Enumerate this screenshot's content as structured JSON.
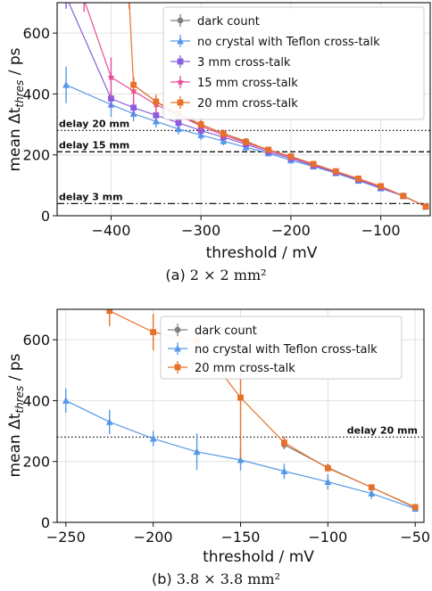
{
  "chart_data": [
    {
      "type": "line",
      "caption_prefix": "(a)",
      "caption_math": "2 × 2 mm²",
      "xlabel": "threshold / mV",
      "ylabel_main": "mean Δt",
      "ylabel_sub": "thres",
      "ylabel_unit": " / ps",
      "xlim": [
        -460,
        -45
      ],
      "ylim": [
        0,
        700
      ],
      "xticks": [
        -400,
        -300,
        -200,
        -100
      ],
      "xtick_labels": [
        "−400",
        "−300",
        "−200",
        "−100"
      ],
      "yticks": [
        0,
        200,
        400,
        600
      ],
      "ytick_labels": [
        "0",
        "200",
        "400",
        "600"
      ],
      "grid": true,
      "legend_position": "top-right",
      "hlines": [
        {
          "label": "delay 20 mm",
          "y": 280,
          "style": "dotted"
        },
        {
          "label": "delay 15 mm",
          "y": 210,
          "style": "dashed"
        },
        {
          "label": "delay 3 mm",
          "y": 40,
          "style": "dashdot"
        }
      ],
      "series": [
        {
          "name": "dark count",
          "color": "#808080",
          "marker": "circle",
          "x": [
            -375,
            -350,
            -325,
            -300,
            -275,
            -250,
            -225,
            -200,
            -175,
            -150,
            -125,
            -100,
            -75,
            -50
          ],
          "y": [
            430,
            375,
            330,
            300,
            270,
            245,
            215,
            195,
            170,
            145,
            120,
            95,
            65,
            30
          ],
          "err": [
            25,
            22,
            18,
            14,
            12,
            10,
            9,
            8,
            7,
            6,
            6,
            5,
            5,
            5
          ]
        },
        {
          "name": "no crystal with Teflon cross-talk",
          "color": "#5599e6",
          "marker": "triangle",
          "x": [
            -450,
            -400,
            -375,
            -350,
            -325,
            -300,
            -275,
            -250,
            -225,
            -200,
            -175,
            -150,
            -125,
            -100,
            -75,
            -50
          ],
          "y": [
            430,
            365,
            335,
            310,
            285,
            265,
            245,
            225,
            205,
            182,
            162,
            140,
            115,
            90,
            65,
            30
          ],
          "err": [
            60,
            40,
            25,
            20,
            18,
            16,
            14,
            12,
            10,
            9,
            8,
            7,
            7,
            6,
            6,
            5
          ]
        },
        {
          "name": "3 mm cross-talk",
          "color": "#8a5ee0",
          "marker": "square",
          "x": [
            -450,
            -400,
            -375,
            -350,
            -325,
            -300,
            -275,
            -250,
            -225,
            -200,
            -175,
            -150,
            -125,
            -100,
            -75,
            -50
          ],
          "y": [
            720,
            385,
            355,
            330,
            305,
            280,
            258,
            235,
            210,
            188,
            165,
            142,
            118,
            92,
            65,
            30
          ],
          "err": [
            40,
            30,
            22,
            18,
            15,
            14,
            12,
            10,
            9,
            8,
            7,
            7,
            6,
            6,
            5,
            5
          ]
        },
        {
          "name": "15 mm cross-talk",
          "color": "#e64a9a",
          "marker": "star",
          "x": [
            -430,
            -400,
            -375,
            -350,
            -325,
            -300,
            -275,
            -250,
            -225,
            -200,
            -175,
            -150,
            -125,
            -100,
            -75,
            -50
          ],
          "y": [
            710,
            455,
            410,
            365,
            330,
            295,
            265,
            240,
            215,
            192,
            168,
            145,
            120,
            95,
            65,
            30
          ],
          "err": [
            40,
            65,
            45,
            30,
            22,
            18,
            14,
            12,
            10,
            9,
            8,
            7,
            6,
            6,
            5,
            5
          ]
        },
        {
          "name": "20 mm cross-talk",
          "color": "#e8702a",
          "marker": "square",
          "x": [
            -380,
            -375,
            -350,
            -325,
            -300,
            -275,
            -250,
            -225,
            -200,
            -175,
            -150,
            -125,
            -100,
            -75,
            -50
          ],
          "y": [
            720,
            430,
            375,
            335,
            300,
            270,
            243,
            217,
            195,
            170,
            146,
            122,
            97,
            65,
            30
          ],
          "err": [
            40,
            25,
            22,
            18,
            15,
            13,
            11,
            10,
            9,
            8,
            7,
            6,
            6,
            5,
            5
          ]
        }
      ]
    },
    {
      "type": "line",
      "caption_prefix": "(b)",
      "caption_math": "3.8 × 3.8 mm²",
      "xlabel": "threshold / mV",
      "ylabel_main": "mean Δt",
      "ylabel_sub": "thres",
      "ylabel_unit": " / ps",
      "xlim": [
        -255,
        -45
      ],
      "ylim": [
        0,
        700
      ],
      "xticks": [
        -250,
        -200,
        -150,
        -100,
        -50
      ],
      "xtick_labels": [
        "−250",
        "−200",
        "−150",
        "−100",
        "−50"
      ],
      "yticks": [
        0,
        200,
        400,
        600
      ],
      "ytick_labels": [
        "0",
        "200",
        "400",
        "600"
      ],
      "grid": true,
      "legend_position": "top-right",
      "hlines": [
        {
          "label": "delay 20 mm",
          "y": 280,
          "style": "dotted"
        }
      ],
      "series": [
        {
          "name": "dark count",
          "color": "#808080",
          "marker": "circle",
          "x": [
            -125,
            -100,
            -75,
            -50
          ],
          "y": [
            255,
            180,
            115,
            48
          ],
          "err": [
            15,
            12,
            10,
            8
          ]
        },
        {
          "name": "no crystal with Teflon cross-talk",
          "color": "#5599e6",
          "marker": "triangle",
          "x": [
            -250,
            -225,
            -200,
            -175,
            -150,
            -125,
            -100,
            -75,
            -50
          ],
          "y": [
            400,
            330,
            275,
            232,
            205,
            168,
            133,
            95,
            45
          ],
          "err": [
            40,
            40,
            25,
            60,
            35,
            25,
            25,
            18,
            10
          ]
        },
        {
          "name": "20 mm cross-talk",
          "color": "#e8702a",
          "marker": "square",
          "x": [
            -225,
            -200,
            -175,
            -150,
            -125,
            -100,
            -75,
            -50
          ],
          "y": [
            695,
            625,
            595,
            410,
            262,
            178,
            115,
            50
          ],
          "err": [
            50,
            60,
            50,
            200,
            20,
            12,
            10,
            8
          ]
        }
      ]
    }
  ]
}
